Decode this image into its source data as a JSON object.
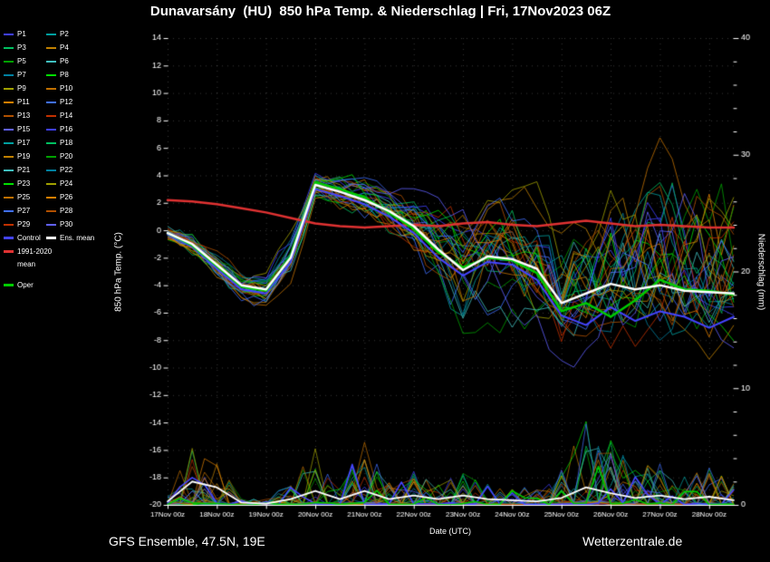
{
  "header": {
    "title": "Dunavarsány  (HU)  850 hPa Temp. & Niederschlag | Fri, 17Nov2023 06Z"
  },
  "footer": {
    "left": "GFS Ensemble, 47.5N, 19E",
    "right": "Wetterzentrale.de"
  },
  "legend": {
    "members": [
      {
        "label": "P1",
        "color": "#4040ff"
      },
      {
        "label": "P2",
        "color": "#00a0a0"
      },
      {
        "label": "P3",
        "color": "#00c060"
      },
      {
        "label": "P4",
        "color": "#c08000"
      },
      {
        "label": "P5",
        "color": "#00a000"
      },
      {
        "label": "P6",
        "color": "#40c0c0"
      },
      {
        "label": "P7",
        "color": "#0080a0"
      },
      {
        "label": "P8",
        "color": "#00e000"
      },
      {
        "label": "P9",
        "color": "#a0a000"
      },
      {
        "label": "P10",
        "color": "#c07000"
      },
      {
        "label": "P11",
        "color": "#e08000"
      },
      {
        "label": "P12",
        "color": "#4070ff"
      },
      {
        "label": "P13",
        "color": "#b05000"
      },
      {
        "label": "P14",
        "color": "#c03000"
      },
      {
        "label": "P15",
        "color": "#6060ff"
      },
      {
        "label": "P16",
        "color": "#4040ff"
      },
      {
        "label": "P17",
        "color": "#00a0a0"
      },
      {
        "label": "P18",
        "color": "#00c060"
      },
      {
        "label": "P19",
        "color": "#c08000"
      },
      {
        "label": "P20",
        "color": "#00a000"
      },
      {
        "label": "P21",
        "color": "#40c0c0"
      },
      {
        "label": "P22",
        "color": "#0080a0"
      },
      {
        "label": "P23",
        "color": "#00e000"
      },
      {
        "label": "P24",
        "color": "#a0a000"
      },
      {
        "label": "P25",
        "color": "#c07000"
      },
      {
        "label": "P26",
        "color": "#e08000"
      },
      {
        "label": "P27",
        "color": "#4070ff"
      },
      {
        "label": "P28",
        "color": "#b05000"
      },
      {
        "label": "P29",
        "color": "#c03000"
      },
      {
        "label": "P30",
        "color": "#6060ff"
      }
    ],
    "control": {
      "label": "Control",
      "color": "#4444ff"
    },
    "ens_mean": {
      "label": "Ens. mean",
      "color": "#ffffff"
    },
    "climate": {
      "label_line1": "1991-2020",
      "label_line2": "mean",
      "color": "#e03232"
    },
    "oper": {
      "label": "Oper",
      "color": "#00cc00"
    }
  },
  "chart_data": {
    "type": "line",
    "title": "Dunavarsány (HU) 850 hPa Temp. & Niederschlag | Fri, 17Nov2023 06Z",
    "xlabel": "Date (UTC)",
    "ylabel_left": "850 hPa Temp. (°C)",
    "ylabel_right": "Niederschlag (mm)",
    "ylim_left": [
      -20,
      14
    ],
    "ylim_right": [
      0,
      40
    ],
    "temp_tick_step": 2,
    "precip_major_tick_step": 10,
    "precip_minor_tick_step": 2,
    "x_hours_max": 276,
    "x_day_ticks": [
      {
        "hour": 0,
        "label": "17Nov 00z"
      },
      {
        "hour": 24,
        "label": "18Nov 00z"
      },
      {
        "hour": 48,
        "label": "19Nov 00z"
      },
      {
        "hour": 72,
        "label": "20Nov 00z"
      },
      {
        "hour": 96,
        "label": "21Nov 00z"
      },
      {
        "hour": 120,
        "label": "22Nov 00z"
      },
      {
        "hour": 144,
        "label": "23Nov 00z"
      },
      {
        "hour": 168,
        "label": "24Nov 00z"
      },
      {
        "hour": 192,
        "label": "25Nov 00z"
      },
      {
        "hour": 216,
        "label": "26Nov 00z"
      },
      {
        "hour": 240,
        "label": "27Nov 00z"
      },
      {
        "hour": 264,
        "label": "28Nov 00z"
      }
    ],
    "sample_hours": [
      0,
      12,
      24,
      36,
      48,
      60,
      72,
      84,
      96,
      108,
      120,
      132,
      144,
      156,
      168,
      180,
      192,
      204,
      216,
      228,
      240,
      252,
      264,
      276
    ],
    "series": {
      "ens_mean_temp": [
        -0.2,
        -1.0,
        -2.5,
        -4.0,
        -4.3,
        -2.0,
        3.3,
        2.8,
        2.2,
        1.4,
        0.3,
        -1.4,
        -2.9,
        -1.9,
        -2.1,
        -2.8,
        -5.3,
        -4.6,
        -3.9,
        -4.3,
        -4.0,
        -4.4,
        -4.5,
        -4.6
      ],
      "control_temp": [
        -0.3,
        -1.2,
        -2.8,
        -4.3,
        -4.6,
        -2.3,
        3.0,
        2.5,
        1.9,
        1.0,
        -0.2,
        -2.0,
        -3.3,
        -2.3,
        -2.5,
        -3.6,
        -6.2,
        -6.9,
        -5.6,
        -6.6,
        -5.9,
        -6.3,
        -7.1,
        -6.3
      ],
      "oper_temp": [
        -0.2,
        -1.1,
        -2.6,
        -4.1,
        -4.4,
        -1.9,
        3.5,
        3.0,
        2.4,
        1.3,
        0.1,
        -1.6,
        -2.7,
        -2.0,
        -2.2,
        -3.1,
        -5.9,
        -5.3,
        -6.3,
        -5.1,
        -3.6,
        -4.3,
        -4.4,
        -4.7
      ],
      "climate_mean_temp": [
        2.2,
        2.1,
        1.9,
        1.6,
        1.3,
        0.9,
        0.5,
        0.3,
        0.2,
        0.3,
        0.4,
        0.3,
        0.5,
        0.6,
        0.4,
        0.3,
        0.5,
        0.7,
        0.5,
        0.3,
        0.4,
        0.3,
        0.2,
        0.2
      ],
      "ensemble_spread_below": [
        0.5,
        0.8,
        1.0,
        1.0,
        1.2,
        1.5,
        1.2,
        1.5,
        1.6,
        2.0,
        3.0,
        4.0,
        5.0,
        5.0,
        5.0,
        5.0,
        4.5,
        4.5,
        5.0,
        4.5,
        5.0,
        4.5,
        4.5,
        4.5
      ],
      "ensemble_spread_above": [
        0.5,
        0.8,
        1.0,
        1.0,
        1.2,
        1.5,
        1.0,
        1.2,
        1.5,
        1.8,
        2.5,
        3.2,
        4.0,
        4.2,
        4.5,
        5.0,
        6.0,
        6.5,
        7.5,
        8.0,
        8.5,
        9.0,
        9.0,
        9.0
      ],
      "precip_envelope_mm": [
        1.0,
        5.0,
        4.0,
        0.5,
        0.5,
        2.0,
        5.0,
        2.0,
        6.0,
        2.0,
        3.0,
        2.0,
        3.5,
        2.0,
        1.5,
        1.5,
        3.0,
        9.0,
        6.0,
        3.0,
        4.0,
        2.5,
        3.5,
        2.0
      ],
      "ens_mean_precip_mm": [
        0.3,
        2.0,
        1.5,
        0.2,
        0.1,
        0.5,
        1.2,
        0.5,
        1.2,
        0.5,
        0.8,
        0.5,
        0.8,
        0.5,
        0.4,
        0.3,
        0.6,
        1.5,
        1.0,
        0.6,
        0.8,
        0.5,
        0.7,
        0.4
      ]
    },
    "colors": {
      "control": "#4444ff",
      "ens_mean": "#ffffff",
      "climate_mean": "#e03232",
      "oper": "#00cc00",
      "background": "#000000",
      "axis_text": "#ffffff"
    }
  }
}
